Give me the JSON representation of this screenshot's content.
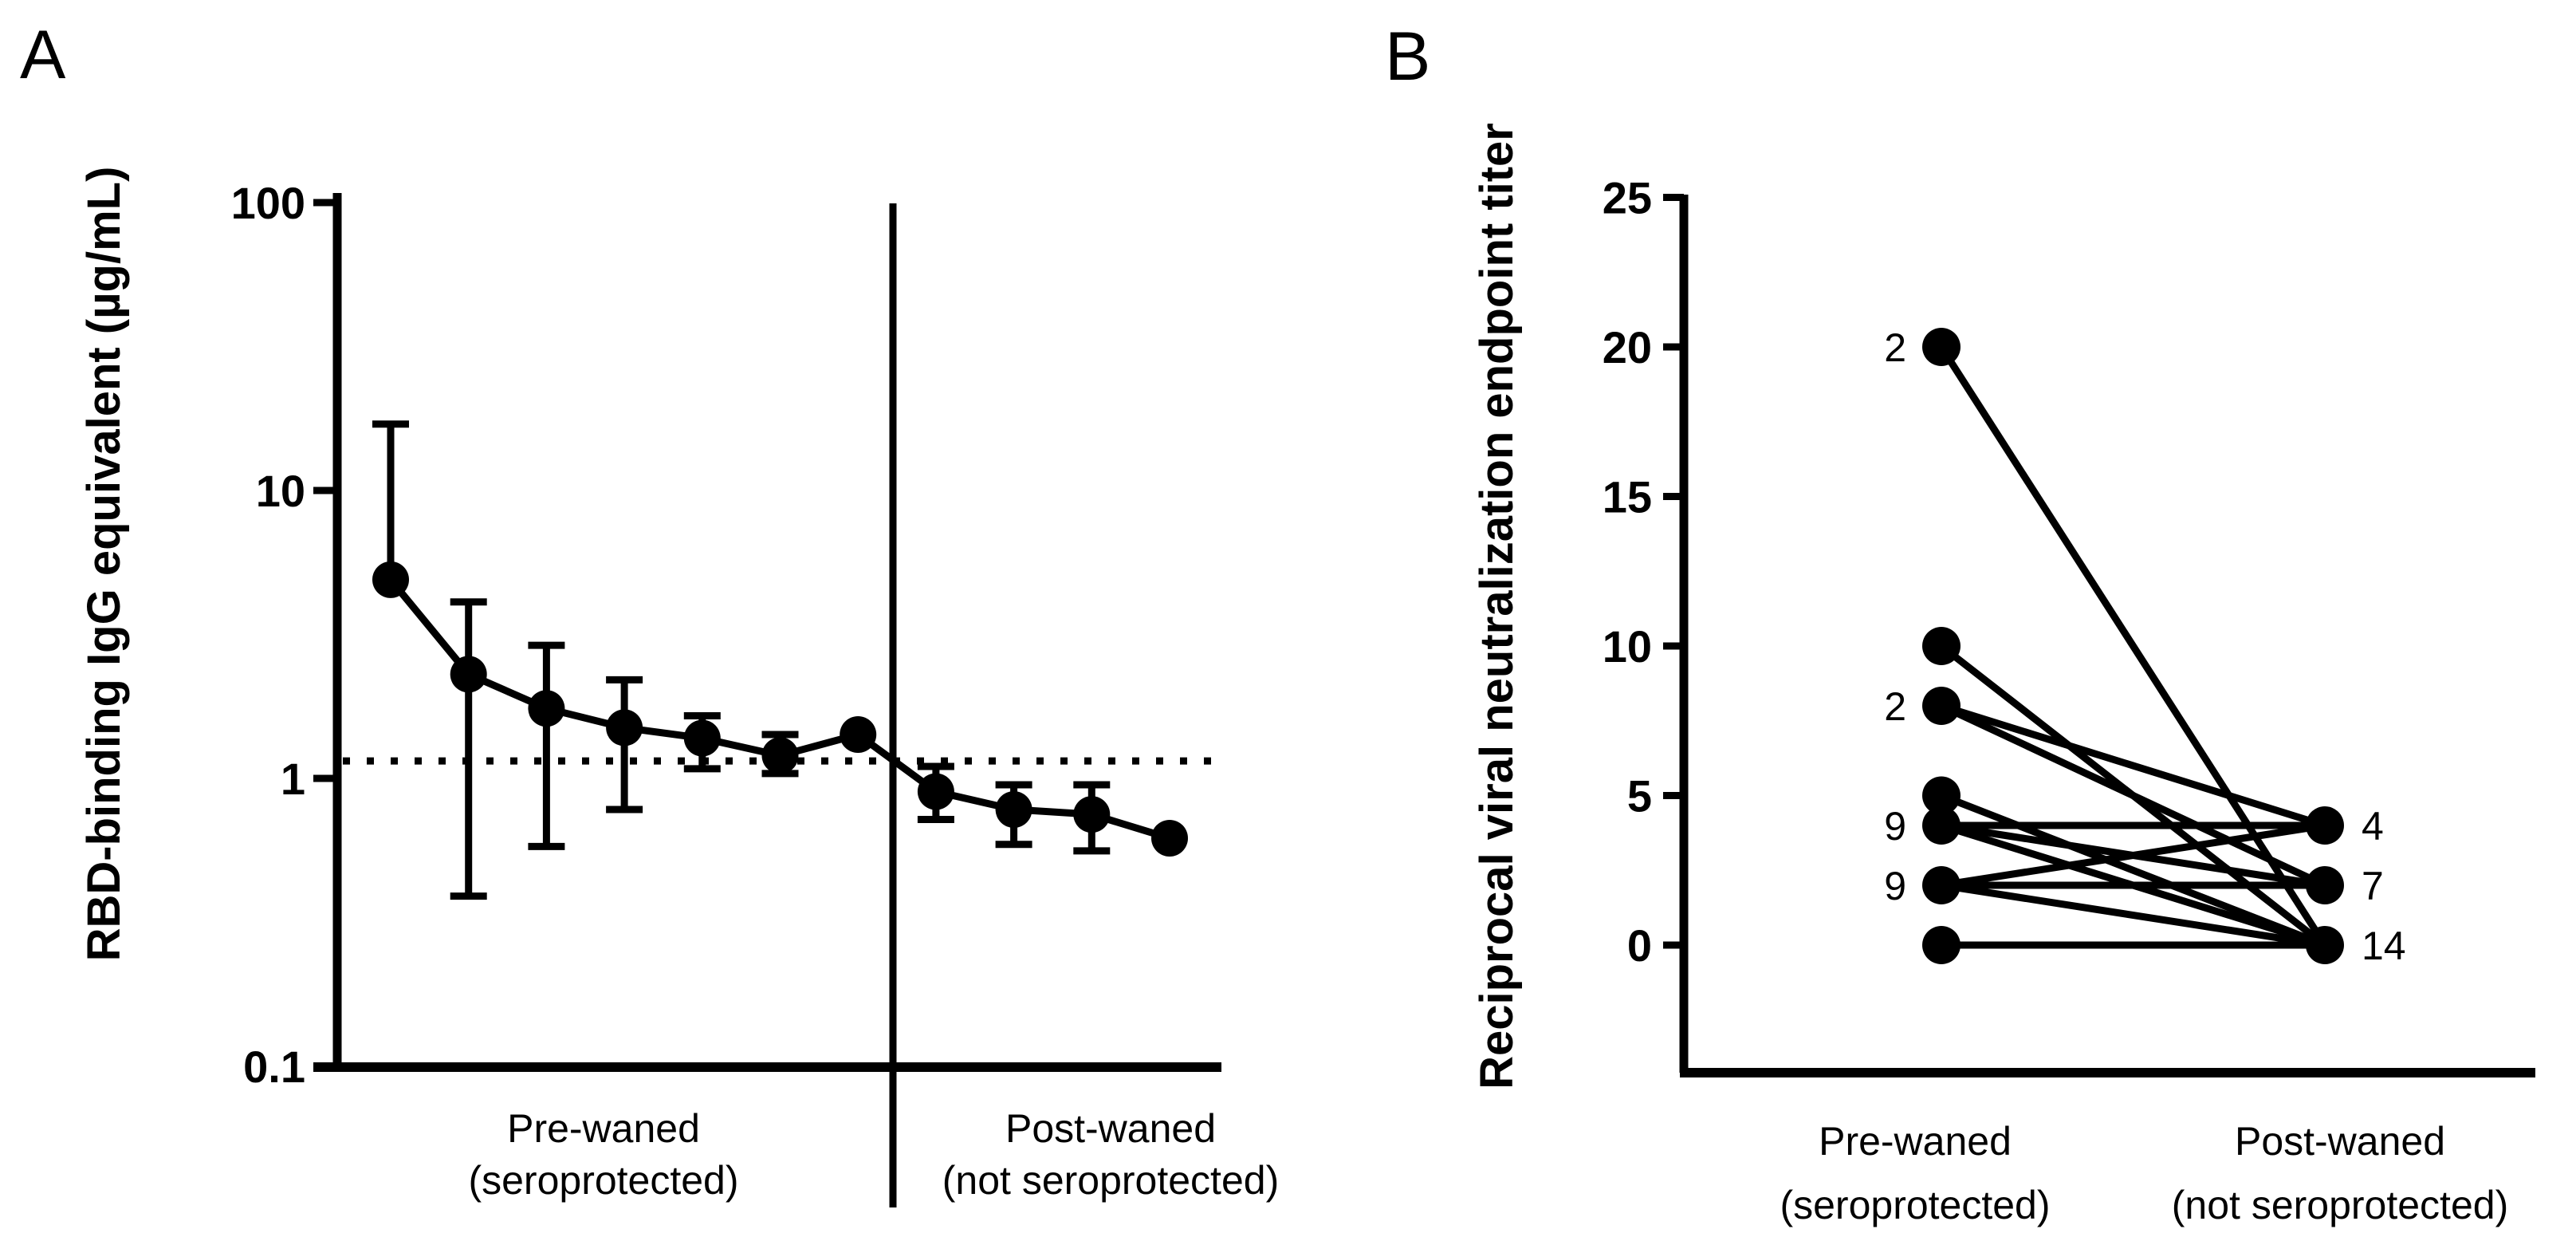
{
  "figure": {
    "background": "#ffffff",
    "ink": "#000000"
  },
  "chart_data": [
    {
      "type": "line",
      "panel_letter": "A",
      "ylabel": "RBD-binding IgG equivalent (µg/mL)",
      "yscale": "log",
      "ylim": [
        0.1,
        100
      ],
      "y_ticks": [
        100,
        10,
        1,
        0.1
      ],
      "reference_line_y": 1.15,
      "x_groups": [
        {
          "line1": "Pre-waned",
          "line2": "(seroprotected)",
          "point_indices": [
            0,
            6
          ]
        },
        {
          "line1": "Post-waned",
          "line2": "(not seroprotected)",
          "point_indices": [
            7,
            10
          ]
        }
      ],
      "points": [
        {
          "y": 4.9,
          "hi": 17
        },
        {
          "y": 2.3,
          "lo": 0.39,
          "hi": 4.1
        },
        {
          "y": 1.75,
          "lo": 0.58,
          "hi": 2.9
        },
        {
          "y": 1.5,
          "lo": 0.78,
          "hi": 2.2
        },
        {
          "y": 1.38,
          "lo": 1.08,
          "hi": 1.65
        },
        {
          "y": 1.2,
          "lo": 1.04,
          "hi": 1.42
        },
        {
          "y": 1.42
        },
        {
          "y": 0.9,
          "lo": 0.72,
          "hi": 1.1
        },
        {
          "y": 0.78,
          "lo": 0.59,
          "hi": 0.95
        },
        {
          "y": 0.75,
          "lo": 0.56,
          "hi": 0.95
        },
        {
          "y": 0.62
        }
      ]
    },
    {
      "type": "paired-scatter",
      "panel_letter": "B",
      "ylabel": "Reciprocal viral neutralization endpoint titer",
      "ylim": [
        0,
        25
      ],
      "y_ticks": [
        25,
        20,
        15,
        10,
        5,
        0
      ],
      "x_groups": [
        {
          "line1": "Pre-waned",
          "line2": "(seroprotected)"
        },
        {
          "line1": "Post-waned",
          "line2": "(not seroprotected)"
        }
      ],
      "left_points": [
        {
          "y": 20,
          "label": "2"
        },
        {
          "y": 10
        },
        {
          "y": 8,
          "label": "2"
        },
        {
          "y": 5
        },
        {
          "y": 4,
          "label": "9"
        },
        {
          "y": 2,
          "label": "9"
        },
        {
          "y": 0
        }
      ],
      "right_points": [
        {
          "y": 4,
          "label": "4"
        },
        {
          "y": 2,
          "label": "7"
        },
        {
          "y": 0,
          "label": "14"
        }
      ],
      "pairs": [
        [
          20,
          0
        ],
        [
          10,
          0
        ],
        [
          8,
          4
        ],
        [
          8,
          2
        ],
        [
          5,
          0
        ],
        [
          4,
          4
        ],
        [
          4,
          2
        ],
        [
          4,
          0
        ],
        [
          2,
          4
        ],
        [
          2,
          2
        ],
        [
          2,
          0
        ],
        [
          0,
          0
        ]
      ]
    }
  ]
}
